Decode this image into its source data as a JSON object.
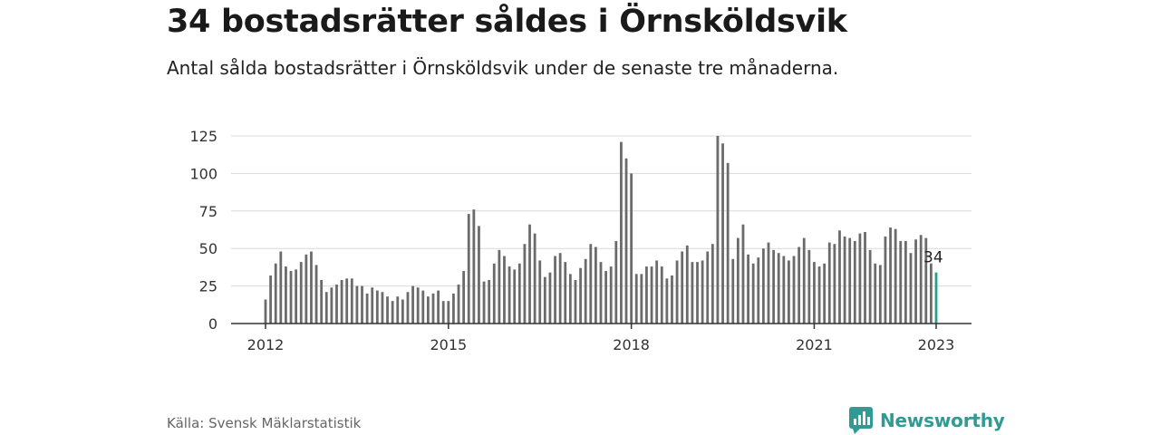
{
  "title": "34 bostadsrätter såldes i Örnsköldsvik",
  "subtitle": "Antal sålda bostadsrätter i Örnsköldsvik under de senaste tre månaderna.",
  "source": "Källa: Svensk Mäklarstatistik",
  "brand": {
    "name": "Newsworthy",
    "icon": "newsworthy-logo-icon",
    "color": "#2f9b92"
  },
  "chart_data": {
    "type": "bar",
    "title": "",
    "xlabel": "",
    "ylabel": "",
    "ylim": [
      0,
      125
    ],
    "yticks": [
      "0",
      "25",
      "50",
      "75",
      "100",
      "125"
    ],
    "xticks": [
      "2012",
      "2015",
      "2018",
      "2021",
      "2023"
    ],
    "grid": true,
    "bar_color": "#6b6b6b",
    "highlight_color": "#2a9d92",
    "last_value_label": "34",
    "start": "2012-01",
    "end": "2023-01",
    "series": [
      {
        "values": [
          16,
          32,
          40,
          48,
          38,
          35,
          36,
          41,
          46,
          48,
          39,
          29,
          21,
          24,
          26,
          29,
          30,
          30,
          25,
          25,
          20,
          24,
          22,
          21,
          18,
          15,
          18,
          16,
          21,
          25,
          24,
          22,
          18,
          20,
          22,
          15,
          15,
          20,
          26,
          35,
          73,
          76,
          65,
          28,
          29,
          40,
          49,
          45,
          38,
          36,
          40,
          53,
          66,
          60,
          42,
          31,
          34,
          45,
          47,
          41,
          33,
          29,
          37,
          43,
          53,
          51,
          41,
          35,
          38,
          55,
          121,
          110,
          100,
          33,
          33,
          38,
          38,
          42,
          38,
          30,
          32,
          42,
          48,
          52,
          41,
          41,
          42,
          48,
          53,
          125,
          120,
          107,
          43,
          57,
          66,
          46,
          40,
          44,
          50,
          54,
          49,
          47,
          45,
          42,
          45,
          51,
          57,
          49,
          41,
          38,
          40,
          54,
          53,
          62,
          58,
          57,
          55,
          60,
          61,
          49,
          40,
          39,
          58,
          64,
          63,
          55,
          55,
          47,
          56,
          59,
          57,
          40,
          34
        ]
      }
    ]
  }
}
